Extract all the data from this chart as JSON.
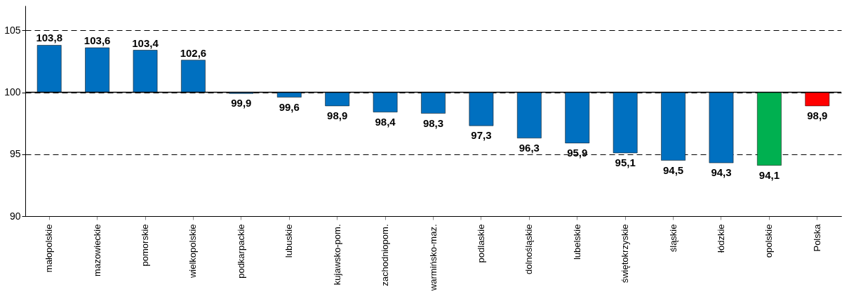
{
  "chart_data": {
    "type": "bar",
    "categories": [
      "małopolskie",
      "mazowieckie",
      "pomorskie",
      "wielkopolskie",
      "podkarpackie",
      "lubuskie",
      "kujawsko-pom.",
      "zachodniopom.",
      "warmińsko-maz.",
      "podlaskie",
      "dolnośląskie",
      "lubelskie",
      "świętokrzyskie",
      "śląskie",
      "łódzkie",
      "opolskie",
      "Polska"
    ],
    "base": [
      100,
      100,
      100,
      100,
      100,
      100,
      100,
      100,
      100,
      100,
      100,
      100,
      100,
      100,
      100,
      100,
      100
    ],
    "values": [
      3.8,
      3.6,
      3.4,
      2.6,
      -0.1,
      -0.4,
      -1.1,
      -1.6,
      -1.7,
      -2.7,
      -3.7,
      -4.1,
      -4.9,
      -5.5,
      -5.7,
      -5.9,
      -1.1
    ],
    "value_labels": [
      "103,8",
      "103,6",
      "103,4",
      "102,6",
      "99,9",
      "99,6",
      "98,9",
      "98,4",
      "98,3",
      "97,3",
      "96,3",
      "95,9",
      "95,1",
      "94,5",
      "94,3",
      "94,1",
      "98,9"
    ],
    "colors": [
      "#0070c0",
      "#0070c0",
      "#0070c0",
      "#0070c0",
      "#0070c0",
      "#0070c0",
      "#0070c0",
      "#0070c0",
      "#0070c0",
      "#0070c0",
      "#0070c0",
      "#0070c0",
      "#0070c0",
      "#0070c0",
      "#0070c0",
      "#00b050",
      "#ff0000"
    ],
    "ylim": [
      90,
      107
    ],
    "yticks": [
      90,
      95,
      100,
      105
    ],
    "grid": "y",
    "ref_lines": [
      {
        "axis": "y",
        "value": 100,
        "label": null,
        "line_style": "solid",
        "color": "#000000"
      }
    ],
    "tick_labels": true
  }
}
